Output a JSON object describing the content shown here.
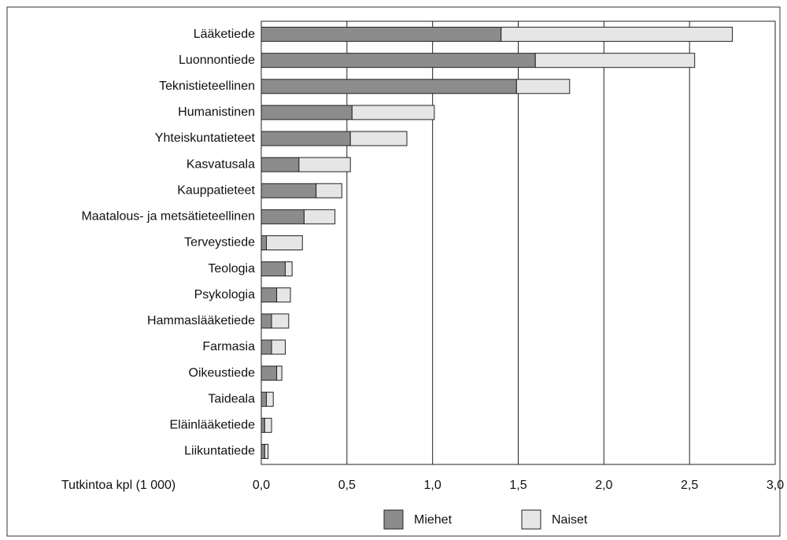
{
  "chart_data": {
    "type": "stacked-barh",
    "xlabel": "Tutkintoa kpl (1 000)",
    "categories": [
      "Lääketiede",
      "Luonnontiede",
      "Teknistieteellinen",
      "Humanistinen",
      "Yhteiskuntatieteet",
      "Kasvatusala",
      "Kauppatieteet",
      "Maatalous- ja metsätieteellinen",
      "Terveystiede",
      "Teologia",
      "Psykologia",
      "Hammaslääketiede",
      "Farmasia",
      "Oikeustiede",
      "Taideala",
      "Eläinlääketiede",
      "Liikuntatiede"
    ],
    "series": [
      {
        "name": "Miehet",
        "color": "#8c8c8c",
        "values": [
          1.4,
          1.6,
          1.49,
          0.53,
          0.52,
          0.22,
          0.32,
          0.25,
          0.03,
          0.14,
          0.09,
          0.06,
          0.06,
          0.09,
          0.03,
          0.02,
          0.02
        ]
      },
      {
        "name": "Naiset",
        "color": "#e6e6e6",
        "values": [
          1.35,
          0.93,
          0.31,
          0.48,
          0.33,
          0.3,
          0.15,
          0.18,
          0.21,
          0.04,
          0.08,
          0.1,
          0.08,
          0.03,
          0.04,
          0.04,
          0.02
        ]
      }
    ],
    "xlim": [
      0,
      3
    ],
    "xticks": [
      {
        "value": 0,
        "label": "0,0"
      },
      {
        "value": 0.5,
        "label": "0,5"
      },
      {
        "value": 1,
        "label": "1,0"
      },
      {
        "value": 1.5,
        "label": "1,5"
      },
      {
        "value": 2,
        "label": "2,0"
      },
      {
        "value": 2.5,
        "label": "2,5"
      },
      {
        "value": 3,
        "label": "3,0"
      }
    ],
    "grid": true
  }
}
